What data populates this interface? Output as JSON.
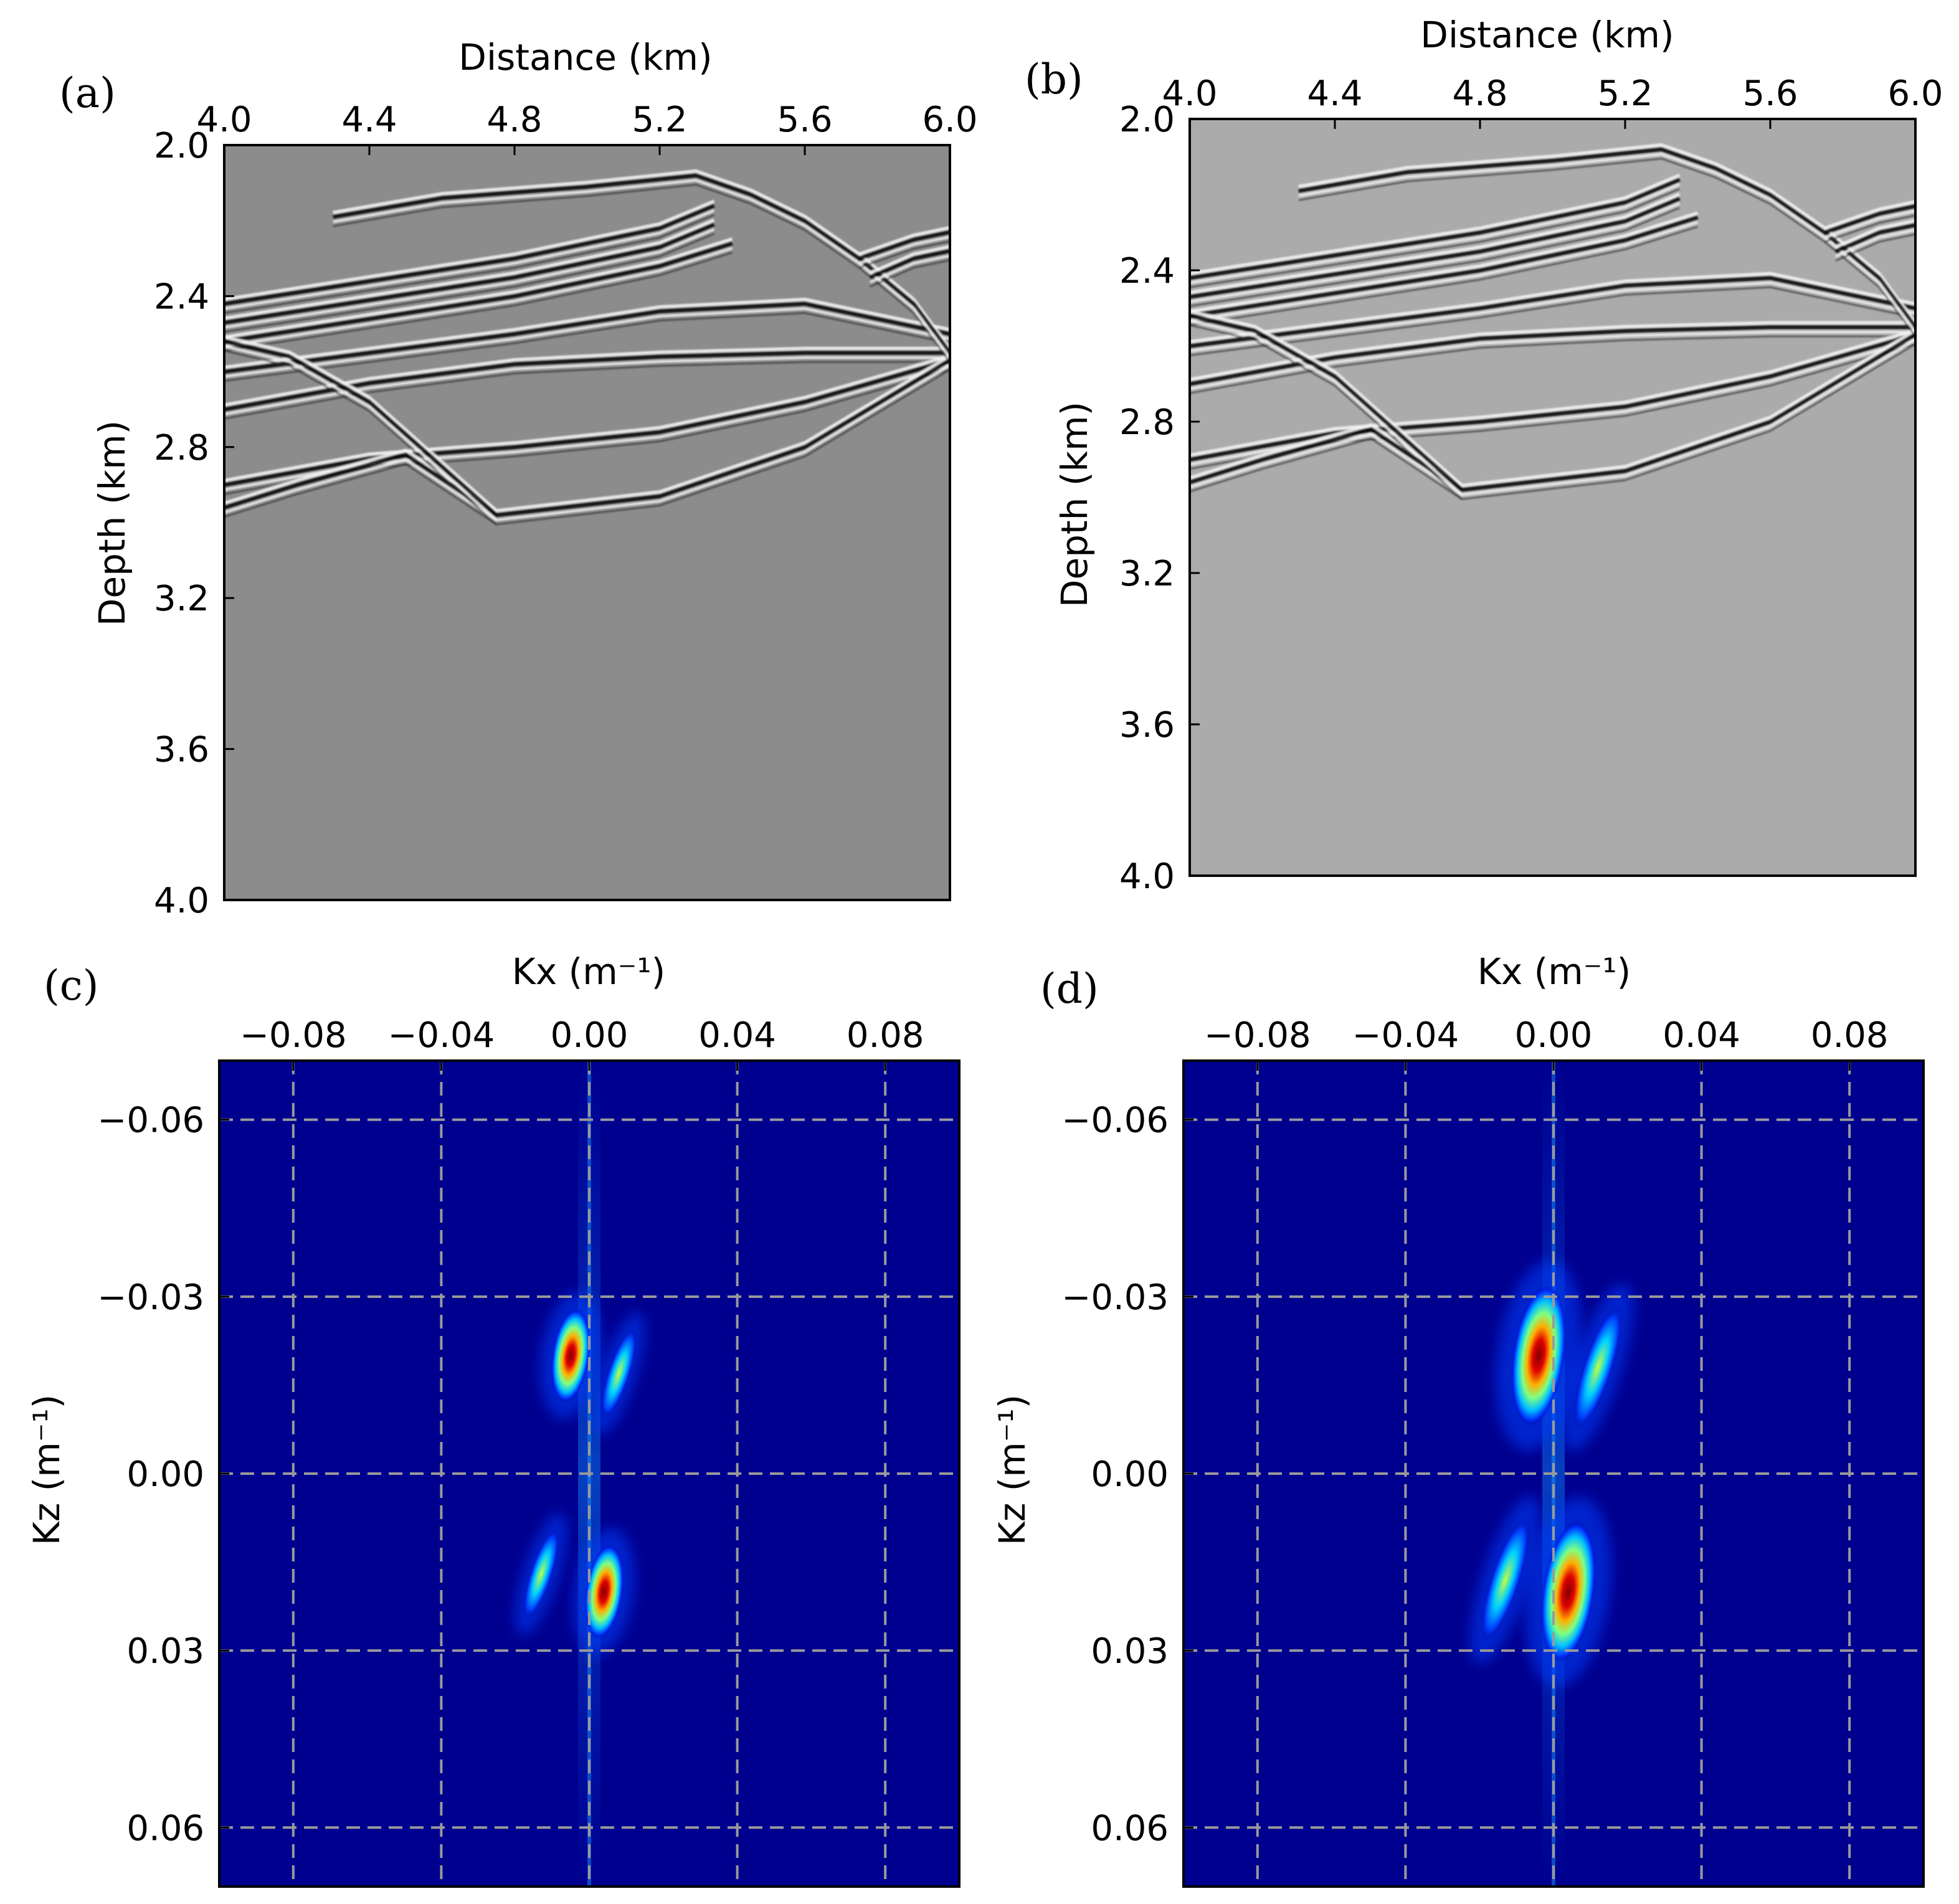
{
  "chart_data": [
    {
      "panel": "(a)",
      "type": "heatmap",
      "title": "",
      "xlabel": "Distance (km)",
      "ylabel": "Depth (km)",
      "xlim": [
        4.0,
        6.0
      ],
      "ylim": [
        2.0,
        4.0
      ],
      "xticks": [
        "4.0",
        "4.4",
        "4.8",
        "5.2",
        "5.6",
        "6.0"
      ],
      "yticks": [
        "2.0",
        "2.4",
        "2.8",
        "3.2",
        "3.6",
        "4.0"
      ],
      "xtick_values": [
        4.0,
        4.4,
        4.8,
        5.2,
        5.6,
        6.0
      ],
      "ytick_values": [
        2.0,
        2.4,
        2.8,
        3.2,
        3.6,
        4.0
      ],
      "x_axis_position": "top",
      "colormap": "gray",
      "background": "#8c8c8c",
      "reflectors": [
        {
          "x": [
            4.3,
            4.6,
            5.0,
            5.3,
            5.45
          ],
          "y": [
            2.19,
            2.14,
            2.11,
            2.08,
            2.13
          ]
        },
        {
          "x": [
            4.0,
            4.4,
            4.8,
            5.2,
            5.35
          ],
          "y": [
            2.42,
            2.36,
            2.3,
            2.22,
            2.16
          ]
        },
        {
          "x": [
            4.0,
            4.4,
            4.8,
            5.2,
            5.35
          ],
          "y": [
            2.47,
            2.41,
            2.35,
            2.27,
            2.21
          ]
        },
        {
          "x": [
            4.0,
            4.4,
            4.8,
            5.2,
            5.4
          ],
          "y": [
            2.52,
            2.46,
            2.4,
            2.32,
            2.26
          ]
        },
        {
          "x": [
            4.0,
            4.4,
            4.8,
            5.2,
            5.6,
            6.0
          ],
          "y": [
            2.6,
            2.55,
            2.5,
            2.44,
            2.42,
            2.5
          ]
        },
        {
          "x": [
            4.0,
            4.4,
            4.8,
            5.2,
            5.6,
            6.0
          ],
          "y": [
            2.7,
            2.63,
            2.58,
            2.56,
            2.55,
            2.55
          ]
        },
        {
          "x": [
            4.0,
            4.4,
            4.8,
            5.2,
            5.6,
            6.0
          ],
          "y": [
            2.9,
            2.83,
            2.8,
            2.76,
            2.68,
            2.57
          ]
        },
        {
          "x": [
            4.0,
            4.2,
            4.5,
            4.75,
            5.2,
            5.6,
            6.0
          ],
          "y": [
            2.96,
            2.9,
            2.82,
            2.98,
            2.93,
            2.8,
            2.57
          ]
        },
        {
          "x": [
            4.0,
            4.18,
            4.4,
            4.75
          ],
          "y": [
            2.52,
            2.56,
            2.68,
            2.98
          ]
        },
        {
          "x": [
            5.45,
            5.6,
            5.75,
            5.9,
            6.0
          ],
          "y": [
            2.13,
            2.2,
            2.3,
            2.42,
            2.55
          ]
        },
        {
          "x": [
            5.75,
            5.9,
            6.0
          ],
          "y": [
            2.3,
            2.25,
            2.23
          ]
        },
        {
          "x": [
            5.78,
            5.9,
            6.0
          ],
          "y": [
            2.35,
            2.3,
            2.28
          ]
        }
      ]
    },
    {
      "panel": "(b)",
      "type": "heatmap",
      "title": "",
      "xlabel": "Distance (km)",
      "ylabel": "Depth (km)",
      "xlim": [
        4.0,
        6.0
      ],
      "ylim": [
        2.0,
        4.0
      ],
      "xticks": [
        "4.0",
        "4.4",
        "4.8",
        "5.2",
        "5.6",
        "6.0"
      ],
      "yticks": [
        "2.0",
        "2.4",
        "2.8",
        "3.2",
        "3.6",
        "4.0"
      ],
      "xtick_values": [
        4.0,
        4.4,
        4.8,
        5.2,
        5.6,
        6.0
      ],
      "ytick_values": [
        2.0,
        2.4,
        2.8,
        3.2,
        3.6,
        4.0
      ],
      "x_axis_position": "top",
      "colormap": "gray",
      "background": "#ababab",
      "reflectors": [
        {
          "x": [
            4.3,
            4.6,
            5.0,
            5.3,
            5.45
          ],
          "y": [
            2.19,
            2.14,
            2.11,
            2.08,
            2.13
          ]
        },
        {
          "x": [
            4.0,
            4.4,
            4.8,
            5.2,
            5.35
          ],
          "y": [
            2.42,
            2.36,
            2.3,
            2.22,
            2.16
          ]
        },
        {
          "x": [
            4.0,
            4.4,
            4.8,
            5.2,
            5.35
          ],
          "y": [
            2.47,
            2.41,
            2.35,
            2.27,
            2.21
          ]
        },
        {
          "x": [
            4.0,
            4.4,
            4.8,
            5.2,
            5.4
          ],
          "y": [
            2.52,
            2.46,
            2.4,
            2.32,
            2.26
          ]
        },
        {
          "x": [
            4.0,
            4.4,
            4.8,
            5.2,
            5.6,
            6.0
          ],
          "y": [
            2.6,
            2.55,
            2.5,
            2.44,
            2.42,
            2.5
          ]
        },
        {
          "x": [
            4.0,
            4.4,
            4.8,
            5.2,
            5.6,
            6.0
          ],
          "y": [
            2.7,
            2.63,
            2.58,
            2.56,
            2.55,
            2.55
          ]
        },
        {
          "x": [
            4.0,
            4.4,
            4.8,
            5.2,
            5.6,
            6.0
          ],
          "y": [
            2.9,
            2.83,
            2.8,
            2.76,
            2.68,
            2.57
          ]
        },
        {
          "x": [
            4.0,
            4.2,
            4.5,
            4.75,
            5.2,
            5.6,
            6.0
          ],
          "y": [
            2.96,
            2.9,
            2.82,
            2.98,
            2.93,
            2.8,
            2.57
          ]
        },
        {
          "x": [
            4.0,
            4.18,
            4.4,
            4.75
          ],
          "y": [
            2.52,
            2.56,
            2.68,
            2.98
          ]
        },
        {
          "x": [
            5.45,
            5.6,
            5.75,
            5.9,
            6.0
          ],
          "y": [
            2.13,
            2.2,
            2.3,
            2.42,
            2.55
          ]
        },
        {
          "x": [
            5.75,
            5.9,
            6.0
          ],
          "y": [
            2.3,
            2.25,
            2.23
          ]
        },
        {
          "x": [
            5.78,
            5.9,
            6.0
          ],
          "y": [
            2.35,
            2.3,
            2.28
          ]
        }
      ]
    },
    {
      "panel": "(c)",
      "type": "heatmap",
      "title": "",
      "xlabel": "Kx (m⁻¹)",
      "ylabel": "Kz (m⁻¹)",
      "xlim": [
        -0.1,
        0.1
      ],
      "ylim": [
        -0.07,
        0.07
      ],
      "xticks": [
        "−0.08",
        "−0.04",
        "0.00",
        "0.04",
        "0.08"
      ],
      "yticks": [
        "−0.06",
        "−0.03",
        "0.00",
        "0.03",
        "0.06"
      ],
      "xtick_values": [
        -0.08,
        -0.04,
        0.0,
        0.04,
        0.08
      ],
      "ytick_values": [
        -0.06,
        -0.03,
        0.0,
        0.03,
        0.06
      ],
      "x_axis_position": "top",
      "grid": true,
      "colormap": "jet",
      "background": "#00008f",
      "blobs": [
        {
          "kx": -0.005,
          "kz": -0.02,
          "rx": 0.005,
          "rz": 0.008,
          "level": 1.0
        },
        {
          "kx": 0.004,
          "kz": 0.02,
          "rx": 0.005,
          "rz": 0.008,
          "level": 1.0
        },
        {
          "kx": 0.008,
          "kz": -0.017,
          "rx": 0.003,
          "rz": 0.008,
          "level": 0.55
        },
        {
          "kx": -0.013,
          "kz": 0.017,
          "rx": 0.003,
          "rz": 0.008,
          "level": 0.55
        }
      ]
    },
    {
      "panel": "(d)",
      "type": "heatmap",
      "title": "",
      "xlabel": "Kx (m⁻¹)",
      "ylabel": "Kz (m⁻¹)",
      "xlim": [
        -0.1,
        0.1
      ],
      "ylim": [
        -0.07,
        0.07
      ],
      "xticks": [
        "−0.08",
        "−0.04",
        "0.00",
        "0.04",
        "0.08"
      ],
      "yticks": [
        "−0.06",
        "−0.03",
        "0.00",
        "0.03",
        "0.06"
      ],
      "xtick_values": [
        -0.08,
        -0.04,
        0.0,
        0.04,
        0.08
      ],
      "ytick_values": [
        -0.06,
        -0.03,
        0.0,
        0.03,
        0.06
      ],
      "x_axis_position": "top",
      "grid": true,
      "colormap": "jet",
      "background": "#00008f",
      "blobs": [
        {
          "kx": -0.004,
          "kz": -0.02,
          "rx": 0.007,
          "rz": 0.012,
          "level": 1.0
        },
        {
          "kx": 0.004,
          "kz": 0.02,
          "rx": 0.007,
          "rz": 0.012,
          "level": 1.0
        },
        {
          "kx": 0.012,
          "kz": -0.018,
          "rx": 0.004,
          "rz": 0.011,
          "level": 0.6
        },
        {
          "kx": -0.013,
          "kz": 0.018,
          "rx": 0.004,
          "rz": 0.011,
          "level": 0.6
        }
      ]
    }
  ]
}
